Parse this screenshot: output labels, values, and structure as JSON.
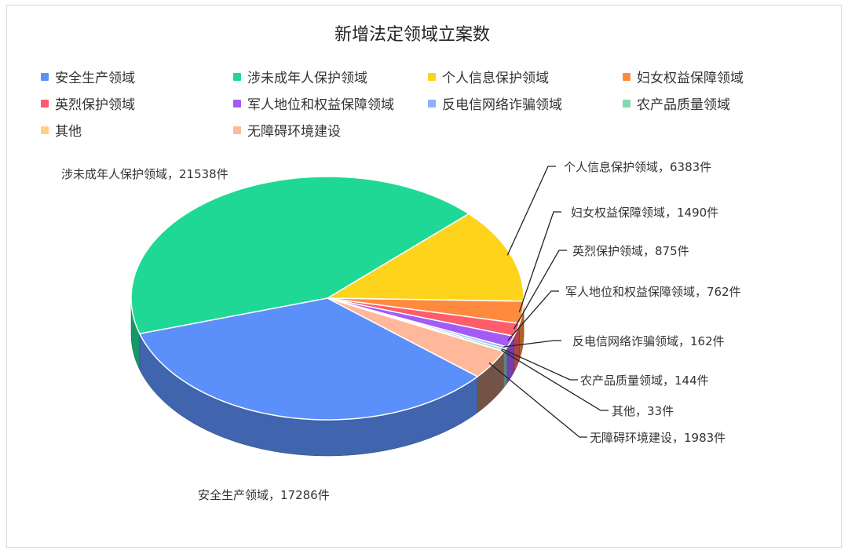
{
  "chart_data": {
    "type": "pie",
    "style": "3d",
    "title": "新增法定领域立案数",
    "unit": "件",
    "legend_position": "top",
    "categories": [
      "安全生产领域",
      "涉未成年人保护领域",
      "个人信息保护领域",
      "妇女权益保障领域",
      "英烈保护领域",
      "军人地位和权益保障领域",
      "反电信网络诈骗领域",
      "农产品质量领域",
      "其他",
      "无障碍环境建设"
    ],
    "values": [
      17286,
      21538,
      6383,
      1490,
      875,
      762,
      162,
      144,
      33,
      1983
    ],
    "colors": [
      "#5b8ff9",
      "#1fd896",
      "#fdd31c",
      "#ff8a3d",
      "#ff5c6c",
      "#a25cf5",
      "#8fb0ff",
      "#80d9b0",
      "#ffd27a",
      "#ffb89a"
    ],
    "data_labels": [
      "安全生产领域，17286件",
      "涉未成年人保护领域，21538件",
      "个人信息保护领域，6383件",
      "妇女权益保障领域，1490件",
      "英烈保护领域，875件",
      "军人地位和权益保障领域，762件",
      "反电信网络诈骗领域，162件",
      "农产品质量领域，144件",
      "其他，33件",
      "无障碍环境建设，1983件"
    ]
  }
}
